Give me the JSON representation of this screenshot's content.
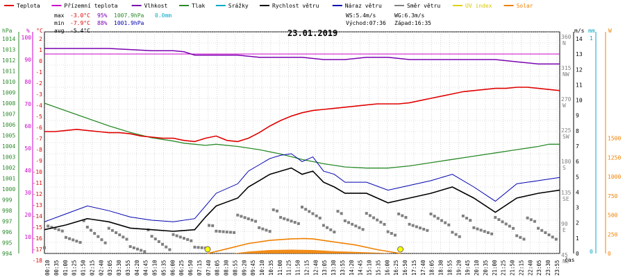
{
  "chart_data": {
    "type": "line",
    "title": "23.01.2019",
    "legend": [
      {
        "label": "Teplota",
        "color": "#e00000"
      },
      {
        "label": "Přízemní teplota",
        "color": "#cc00cc"
      },
      {
        "label": "Vlhkost",
        "color": "#7a00b0"
      },
      {
        "label": "Tlak",
        "color": "#2a8a2a"
      },
      {
        "label": "Srážky",
        "color": "#00a8c8"
      },
      {
        "label": "Rychlost větru",
        "color": "#000000"
      },
      {
        "label": "Náraz větru",
        "color": "#0000b0"
      },
      {
        "label": "Směr větru",
        "color": "#808080"
      },
      {
        "label": "UV index",
        "color": "#e0d000"
      },
      {
        "label": "Solar",
        "color": "#f08000"
      }
    ],
    "stats": {
      "max": {
        "label": "max",
        "temp": "-3.0°C",
        "hum": "95%",
        "press": "1007.9hPa",
        "rain": "0.0mm"
      },
      "min": {
        "label": "min",
        "temp": "-7.9°C",
        "hum": "88%",
        "press": "1001.9hPa"
      },
      "avg": {
        "label": "avg",
        "temp": "-5.4°C"
      },
      "ws": "WS:5.4m/s",
      "wg": "WG:6.3m/s",
      "sunrise": "Východ:07:36",
      "sunset": "Západ:16:35"
    },
    "axes": {
      "press": {
        "unit": "hPa",
        "ticks": [
          "1014",
          "1013",
          "1012",
          "1011",
          "1010",
          "1009",
          "1008",
          "1007",
          "1006",
          "1005",
          "1004",
          "1003",
          "1002",
          "1001",
          "1000",
          "999",
          "998",
          "997",
          "996",
          "995",
          "994"
        ]
      },
      "hum": {
        "unit": "%",
        "ticks": [
          "100",
          "90",
          "80",
          "70",
          "60",
          "50",
          "40",
          "30",
          "20",
          "10"
        ]
      },
      "temp": {
        "unit": "°C",
        "ticks": [
          "2",
          "1",
          "0",
          "-1",
          "-2",
          "-3",
          "-4",
          "-5",
          "-6",
          "-7",
          "-8",
          "-9",
          "-10",
          "-11",
          "-12",
          "-13",
          "-14",
          "-15",
          "-16",
          "-17",
          "-18"
        ]
      },
      "dir": {
        "ticks": [
          {
            "deg": "360",
            "lbl": "N"
          },
          {
            "deg": "315",
            "lbl": "NW"
          },
          {
            "deg": "270",
            "lbl": "W"
          },
          {
            "deg": "225",
            "lbl": "SW"
          },
          {
            "deg": "180",
            "lbl": "S"
          },
          {
            "deg": "135",
            "lbl": "SE"
          },
          {
            "deg": "90",
            "lbl": "E"
          },
          {
            "deg": "45",
            "lbl": "NE"
          }
        ]
      },
      "ms": {
        "unit": "m/s",
        "ticks": [
          "14",
          "13",
          "12",
          "11",
          "10",
          "9",
          "8",
          "7",
          "6",
          "5",
          "4",
          "3",
          "2",
          "1",
          "0"
        ]
      },
      "mm": {
        "unit": "mm",
        "ticks": [
          "1",
          "0"
        ]
      },
      "solar": {
        "unit": "W",
        "ticks": [
          "1500",
          "1250",
          "1000",
          "750",
          "500",
          "250",
          "0"
        ]
      },
      "x_label": "čas",
      "x_ticks": [
        "00:10",
        "00:35",
        "01:00",
        "01:25",
        "01:50",
        "02:15",
        "02:40",
        "03:05",
        "03:30",
        "03:55",
        "04:20",
        "04:45",
        "05:10",
        "05:35",
        "06:00",
        "06:25",
        "06:50",
        "07:15",
        "07:40",
        "08:05",
        "08:30",
        "08:55",
        "09:20",
        "09:45",
        "10:10",
        "10:35",
        "11:00",
        "11:25",
        "11:50",
        "12:15",
        "12:40",
        "13:05",
        "13:30",
        "13:55",
        "14:20",
        "14:45",
        "15:10",
        "15:35",
        "16:00",
        "16:25",
        "16:50",
        "17:15",
        "17:40",
        "18:05",
        "18:30",
        "18:55",
        "19:20",
        "19:45",
        "20:10",
        "20:35",
        "21:00",
        "21:25",
        "21:50",
        "22:15",
        "22:40",
        "23:05",
        "23:30",
        "23:55"
      ]
    },
    "series": [
      {
        "name": "Teplota",
        "unit": "°C",
        "color": "#e00000",
        "x": [
          0,
          0.5,
          1,
          1.5,
          2,
          2.5,
          3,
          3.5,
          4,
          4.5,
          5,
          5.5,
          6,
          6.5,
          7,
          7.5,
          8,
          8.5,
          9,
          9.5,
          10,
          10.5,
          11,
          11.5,
          12,
          12.5,
          13,
          13.5,
          14,
          14.5,
          15,
          15.5,
          16,
          16.5,
          17,
          17.5,
          18,
          18.5,
          19,
          19.5,
          20,
          20.5,
          21,
          21.5,
          22,
          22.5,
          23,
          23.5,
          24
        ],
        "values": [
          -7.0,
          -7.0,
          -6.9,
          -6.8,
          -6.9,
          -7.0,
          -7.1,
          -7.1,
          -7.2,
          -7.4,
          -7.5,
          -7.6,
          -7.6,
          -7.8,
          -7.9,
          -7.6,
          -7.4,
          -7.8,
          -7.9,
          -7.6,
          -7.1,
          -6.5,
          -6.0,
          -5.6,
          -5.3,
          -5.1,
          -5.0,
          -4.9,
          -4.8,
          -4.7,
          -4.6,
          -4.5,
          -4.5,
          -4.5,
          -4.4,
          -4.2,
          -4.0,
          -3.8,
          -3.6,
          -3.4,
          -3.3,
          -3.2,
          -3.1,
          -3.1,
          -3.0,
          -3.0,
          -3.1,
          -3.2,
          -3.3
        ]
      },
      {
        "name": "Vlhkost",
        "unit": "%",
        "color": "#7a00b0",
        "x": [
          0,
          1,
          2,
          3,
          4,
          5,
          6,
          6.5,
          7,
          8,
          9,
          10,
          11,
          12,
          13,
          14,
          15,
          16,
          17,
          18,
          19,
          20,
          21,
          22,
          23,
          24
        ],
        "values": [
          95,
          95,
          95,
          95,
          94.5,
          94,
          94,
          93.5,
          92,
          92,
          92,
          91,
          91,
          91,
          90,
          90,
          91,
          91,
          90,
          90,
          90,
          90,
          90,
          89,
          88,
          88
        ]
      },
      {
        "name": "Tlak",
        "unit": "hPa",
        "color": "#2a8a2a",
        "x": [
          0,
          1,
          2,
          3,
          4,
          5,
          6,
          6.5,
          7,
          7.5,
          8,
          9,
          10,
          11,
          12,
          13,
          14,
          15,
          16,
          17,
          18,
          19,
          20,
          21,
          22,
          23,
          23.5,
          24
        ],
        "values": [
          1007.9,
          1007.2,
          1006.5,
          1005.8,
          1005.2,
          1004.7,
          1004.4,
          1004.2,
          1004.1,
          1004.0,
          1004.1,
          1003.9,
          1003.6,
          1003.2,
          1002.7,
          1002.3,
          1002.0,
          1001.9,
          1001.9,
          1002.1,
          1002.4,
          1002.7,
          1003.0,
          1003.3,
          1003.6,
          1003.9,
          1004.1,
          1004.1
        ]
      },
      {
        "name": "Rychlost větru",
        "unit": "m/s",
        "color": "#000000",
        "x": [
          0,
          1,
          2,
          3,
          4,
          5,
          6,
          7,
          7.5,
          8,
          9,
          9.5,
          10,
          10.5,
          11,
          11.5,
          12,
          12.5,
          13,
          13.5,
          14,
          15,
          16,
          17,
          18,
          19,
          20,
          21,
          22,
          23,
          24
        ],
        "values": [
          1.5,
          1.8,
          2.2,
          2.0,
          1.6,
          1.5,
          1.4,
          1.5,
          2.3,
          3.0,
          3.5,
          4.2,
          4.6,
          5.0,
          5.2,
          5.4,
          5.0,
          5.2,
          4.5,
          4.2,
          3.8,
          3.8,
          3.2,
          3.5,
          3.8,
          4.2,
          3.5,
          2.6,
          3.5,
          3.8,
          4.0
        ]
      },
      {
        "name": "Náraz větru",
        "unit": "m/s",
        "color": "#0000b0",
        "x": [
          0,
          1,
          2,
          3,
          4,
          5,
          6,
          7,
          7.5,
          8,
          9,
          9.5,
          10,
          10.5,
          11,
          11.5,
          12,
          12.5,
          13,
          13.5,
          14,
          15,
          16,
          17,
          18,
          19,
          20,
          21,
          22,
          23,
          24
        ],
        "values": [
          2.0,
          2.5,
          3.0,
          2.7,
          2.3,
          2.1,
          2.0,
          2.2,
          3.0,
          3.8,
          4.4,
          5.2,
          5.6,
          6.0,
          6.2,
          6.3,
          5.8,
          6.1,
          5.2,
          5.0,
          4.5,
          4.5,
          4.0,
          4.3,
          4.6,
          5.0,
          4.2,
          3.3,
          4.4,
          4.6,
          4.8
        ]
      },
      {
        "name": "Směr větru",
        "unit": "°",
        "color": "#808080",
        "x": [
          0,
          1,
          2,
          3,
          4,
          5,
          6,
          7,
          8,
          9,
          10,
          11,
          12,
          13,
          14,
          15,
          16,
          17,
          18,
          19,
          20,
          21,
          22,
          23,
          24
        ],
        "values": [
          30,
          35,
          40,
          25,
          20,
          25,
          15,
          20,
          35,
          50,
          55,
          60,
          65,
          60,
          55,
          55,
          50,
          50,
          55,
          50,
          45,
          50,
          45,
          45,
          40
        ]
      },
      {
        "name": "Solar",
        "unit": "W",
        "color": "#f08000",
        "x": [
          7.6,
          8.5,
          9.5,
          10.5,
          11.5,
          12.1,
          12.5,
          13.5,
          14.5,
          15.5,
          16.58
        ],
        "values": [
          0,
          60,
          130,
          170,
          190,
          195,
          190,
          150,
          110,
          50,
          0
        ]
      }
    ]
  }
}
